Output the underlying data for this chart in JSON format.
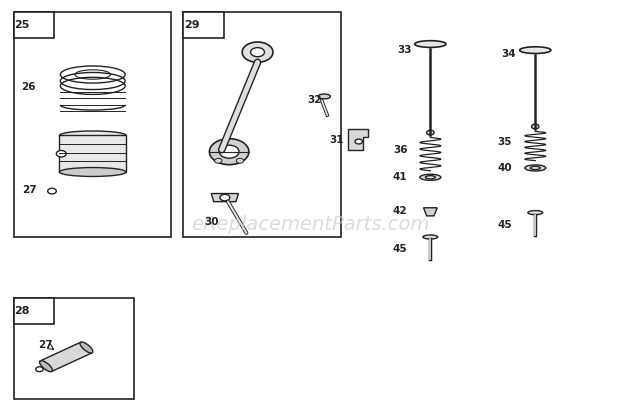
{
  "bg_color": "#ffffff",
  "line_color": "#222222",
  "watermark_text": "eReplacementParts.com",
  "watermark_color": "#cccccc",
  "watermark_fontsize": 14
}
